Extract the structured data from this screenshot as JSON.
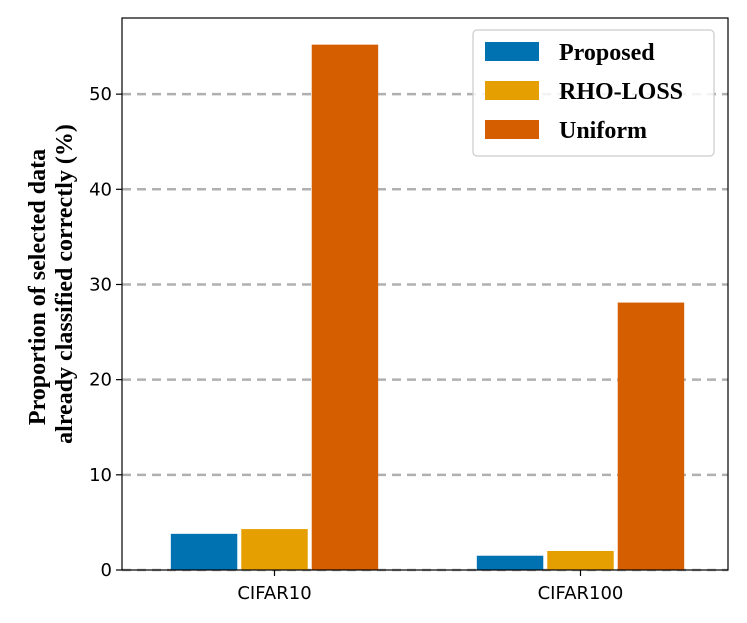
{
  "chart_data": {
    "type": "bar",
    "categories": [
      "CIFAR10",
      "CIFAR100"
    ],
    "series": [
      {
        "name": "Proposed",
        "values": [
          3.8,
          1.5
        ],
        "color": "#0072b2"
      },
      {
        "name": "RHO-LOSS",
        "values": [
          4.3,
          2.0
        ],
        "color": "#e69f00"
      },
      {
        "name": "Uniform",
        "values": [
          55.2,
          28.1
        ],
        "color": "#d55e00"
      }
    ],
    "ylabel_lines": [
      "Proportion of selected data",
      "already classified correctly (%)"
    ],
    "xlabel": "",
    "ylim": [
      0,
      58
    ],
    "yticks": [
      0,
      10,
      20,
      30,
      40,
      50
    ],
    "grid": "y-dashed",
    "legend_position": "top-right"
  }
}
